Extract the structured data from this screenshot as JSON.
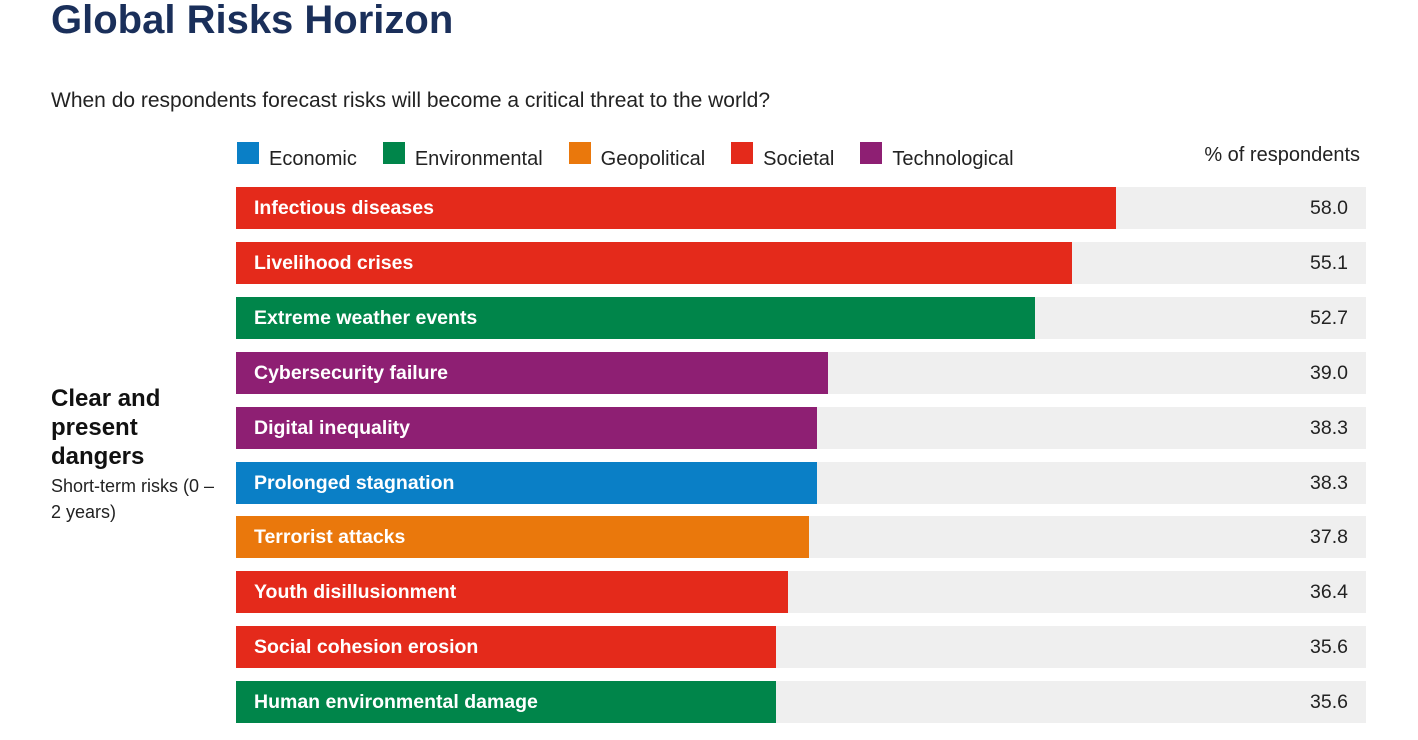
{
  "title": "Global Risks Horizon",
  "subtitle": "When do respondents forecast risks will become a critical threat to the world?",
  "legend": [
    {
      "label": "Economic",
      "color": "#0a7fc6"
    },
    {
      "label": "Environmental",
      "color": "#00854a"
    },
    {
      "label": "Geopolitical",
      "color": "#ea780c"
    },
    {
      "label": "Societal",
      "color": "#e42a1b"
    },
    {
      "label": "Technological",
      "color": "#8e1f73"
    }
  ],
  "unit_label": "% of respondents",
  "group": {
    "title": "Clear and present dangers",
    "subtitle": "Short-term risks (0 – 2 years)"
  },
  "chart_data": {
    "type": "bar",
    "orientation": "horizontal",
    "xlim": [
      0,
      74.5
    ],
    "categories": [
      "Infectious diseases",
      "Livelihood crises",
      "Extreme weather events",
      "Cybersecurity failure",
      "Digital inequality",
      "Prolonged stagnation",
      "Terrorist attacks",
      "Youth disillusionment",
      "Social cohesion erosion",
      "Human environmental damage"
    ],
    "values": [
      58.0,
      55.1,
      52.7,
      39.0,
      38.3,
      38.3,
      37.8,
      36.4,
      35.6,
      35.6
    ],
    "value_labels": [
      "58.0",
      "55.1",
      "52.7",
      "39.0",
      "38.3",
      "38.3",
      "37.8",
      "36.4",
      "35.6",
      "35.6"
    ],
    "categories_type": [
      "Societal",
      "Societal",
      "Environmental",
      "Technological",
      "Technological",
      "Economic",
      "Geopolitical",
      "Societal",
      "Societal",
      "Environmental"
    ]
  }
}
